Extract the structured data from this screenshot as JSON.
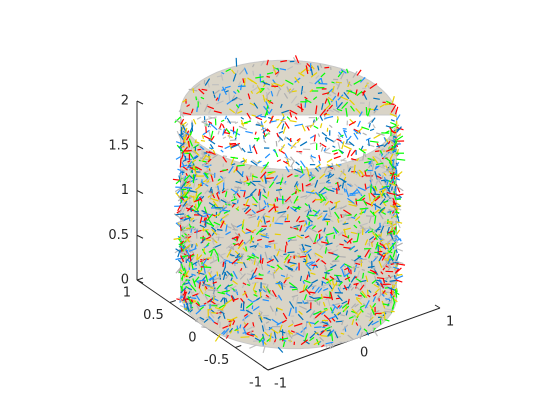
{
  "chart_data": {
    "type": "cylinder3d",
    "xlim": [
      -1,
      1
    ],
    "xticks": [
      -1,
      0,
      1
    ],
    "ylim": [
      -1,
      1
    ],
    "yticks": [
      -1,
      -0.5,
      0,
      0.5,
      1
    ],
    "zlim": [
      0,
      2
    ],
    "zticks": [
      0,
      0.5,
      1,
      1.5,
      2
    ],
    "cylinder": {
      "radius": 1,
      "height": 2
    }
  }
}
